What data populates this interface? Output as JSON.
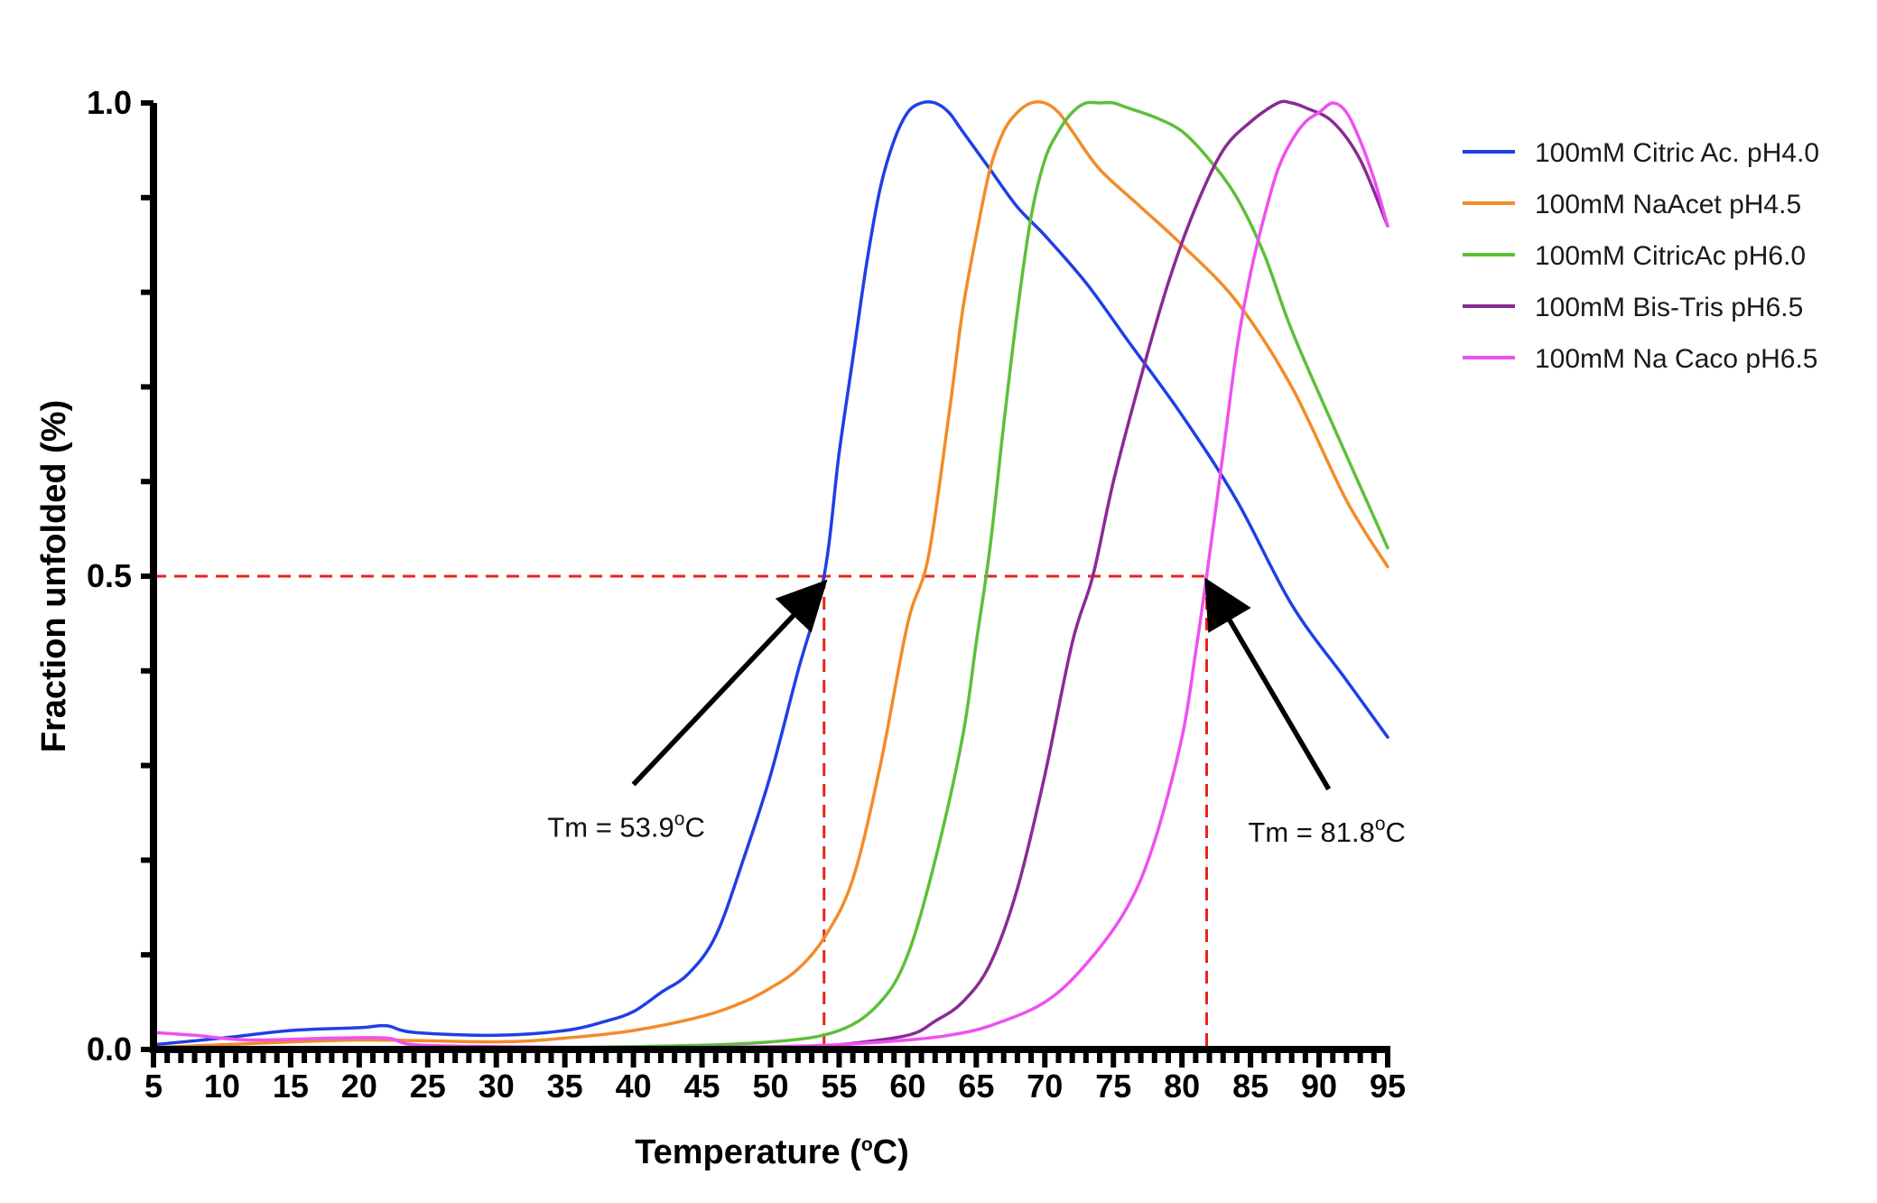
{
  "chart_data": {
    "type": "line",
    "xlabel": "Temperature",
    "xlabel_unit_open": "(",
    "xlabel_unit_sup": "o",
    "xlabel_unit_close": "C)",
    "ylabel": "Fraction unfolded  (%)",
    "xlim": [
      5,
      95
    ],
    "ylim": [
      0,
      1
    ],
    "x_tick_labels": [
      "5",
      "10",
      "15",
      "20",
      "25",
      "30",
      "35",
      "40",
      "45",
      "50",
      "55",
      "60",
      "65",
      "70",
      "75",
      "80",
      "85",
      "90",
      "95"
    ],
    "y_tick_labels": [
      "0.0",
      "0.5",
      "1.0"
    ],
    "grid": false,
    "legend_position": "right",
    "series": [
      {
        "name": "100mM Citric Ac. pH4.0",
        "color": "#1f3fe6",
        "x": [
          5,
          10,
          15,
          20,
          22,
          24,
          30,
          35,
          38,
          40,
          42,
          44,
          46,
          48,
          50,
          52,
          53.9,
          55,
          56,
          57,
          58,
          59,
          60,
          61,
          62,
          63,
          64,
          66,
          68,
          70,
          73,
          76,
          80,
          84,
          88,
          92,
          95
        ],
        "y": [
          0.005,
          0.012,
          0.02,
          0.023,
          0.025,
          0.018,
          0.015,
          0.02,
          0.03,
          0.04,
          0.06,
          0.08,
          0.12,
          0.2,
          0.29,
          0.4,
          0.5,
          0.63,
          0.73,
          0.83,
          0.91,
          0.96,
          0.99,
          1.0,
          1.0,
          0.99,
          0.97,
          0.93,
          0.89,
          0.86,
          0.81,
          0.75,
          0.67,
          0.58,
          0.47,
          0.39,
          0.33
        ]
      },
      {
        "name": "100mM NaAcet pH4.5",
        "color": "#f28c28",
        "x": [
          5,
          10,
          20,
          30,
          35,
          40,
          45,
          48,
          50,
          52,
          54,
          56,
          58,
          60,
          61.5,
          63,
          64,
          65,
          66,
          67,
          68,
          69,
          70,
          71,
          72,
          74,
          77,
          80,
          84,
          88,
          92,
          95
        ],
        "y": [
          0.002,
          0.005,
          0.01,
          0.008,
          0.012,
          0.02,
          0.035,
          0.05,
          0.065,
          0.085,
          0.12,
          0.18,
          0.3,
          0.45,
          0.52,
          0.67,
          0.78,
          0.86,
          0.93,
          0.97,
          0.99,
          1.0,
          1.0,
          0.99,
          0.97,
          0.93,
          0.89,
          0.85,
          0.79,
          0.7,
          0.58,
          0.51
        ]
      },
      {
        "name": "100mM CitricAc pH6.0",
        "color": "#5cc03a",
        "x": [
          5,
          20,
          40,
          50,
          55,
          58,
          60,
          62,
          64,
          65,
          66,
          67,
          68,
          69,
          70,
          71,
          72,
          73,
          74,
          75,
          76,
          78,
          80,
          82,
          84,
          86,
          88,
          91,
          95
        ],
        "y": [
          0.0,
          0.0,
          0.003,
          0.008,
          0.02,
          0.05,
          0.1,
          0.2,
          0.33,
          0.43,
          0.53,
          0.66,
          0.78,
          0.88,
          0.94,
          0.97,
          0.99,
          1.0,
          1.0,
          1.0,
          0.995,
          0.985,
          0.97,
          0.94,
          0.9,
          0.84,
          0.76,
          0.66,
          0.53
        ]
      },
      {
        "name": "100mM Bis-Tris pH6.5",
        "color": "#8a2a96",
        "x": [
          5,
          30,
          50,
          55,
          60,
          62,
          64,
          66,
          68,
          70,
          72,
          73.5,
          75,
          77,
          79,
          81,
          83,
          85,
          87,
          88,
          89,
          91,
          93,
          95
        ],
        "y": [
          0.0,
          0.0,
          0.0,
          0.005,
          0.015,
          0.03,
          0.05,
          0.09,
          0.17,
          0.29,
          0.43,
          0.5,
          0.6,
          0.71,
          0.81,
          0.89,
          0.95,
          0.98,
          1.0,
          1.0,
          0.995,
          0.98,
          0.94,
          0.87
        ]
      },
      {
        "name": "100mM Na Caco pH6.5",
        "color": "#f050f0",
        "x": [
          5,
          8,
          12,
          18,
          22,
          24,
          30,
          40,
          50,
          55,
          60,
          63,
          66,
          70,
          73,
          76,
          78,
          80,
          81,
          81.8,
          83,
          84,
          85,
          86,
          87,
          88,
          89,
          90,
          91,
          92,
          93,
          94,
          95
        ],
        "y": [
          0.018,
          0.015,
          0.01,
          0.012,
          0.012,
          0.005,
          0.003,
          0.002,
          0.003,
          0.005,
          0.01,
          0.015,
          0.025,
          0.05,
          0.09,
          0.15,
          0.22,
          0.33,
          0.42,
          0.5,
          0.63,
          0.74,
          0.82,
          0.88,
          0.93,
          0.96,
          0.98,
          0.99,
          1.0,
          0.99,
          0.96,
          0.92,
          0.87
        ]
      }
    ],
    "reference_lines": {
      "y": 0.5,
      "x_from": 5,
      "x_to": 81.8,
      "verticals": [
        53.9,
        81.8
      ],
      "color": "#e8231e"
    },
    "annotations": [
      {
        "text": "Tm = 53.9",
        "sup": "o",
        "suffix": "C",
        "arrow_from": [
          40,
          0.28
        ],
        "arrow_to": [
          53.4,
          0.485
        ]
      },
      {
        "text": "Tm = 81.8",
        "sup": "o",
        "suffix": "C",
        "arrow_from": [
          90.7,
          0.275
        ],
        "arrow_to": [
          82.2,
          0.485
        ]
      }
    ]
  }
}
